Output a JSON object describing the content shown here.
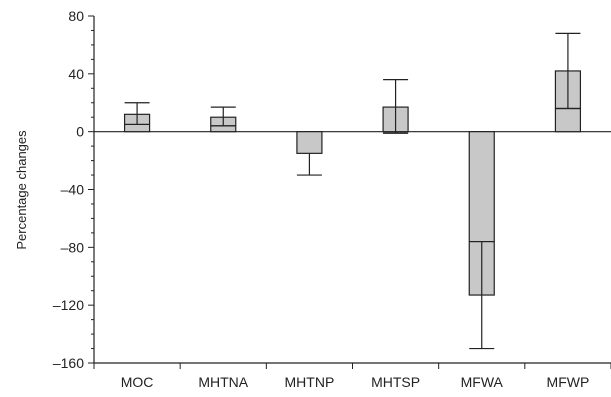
{
  "chart_data": {
    "type": "bar",
    "title": "",
    "xlabel": "",
    "ylabel": "Percentage changes",
    "categories": [
      "MOC",
      "MHTNA",
      "MHTNP",
      "MHTSP",
      "MFWA",
      "MFWP"
    ],
    "values": [
      12,
      10,
      -15,
      17,
      -113,
      42
    ],
    "inner_line": [
      5,
      4,
      null,
      -1,
      -76,
      16
    ],
    "error_high": [
      20,
      17,
      null,
      36,
      -76,
      68
    ],
    "error_low": [
      5,
      4,
      -30,
      -1,
      -150,
      16
    ],
    "ylim": [
      -160,
      80
    ],
    "yticks": [
      80,
      40,
      0,
      -40,
      -80,
      -120,
      -160
    ],
    "grid": false,
    "bar_color": "#c8c8c8",
    "line_color": "#222222"
  }
}
